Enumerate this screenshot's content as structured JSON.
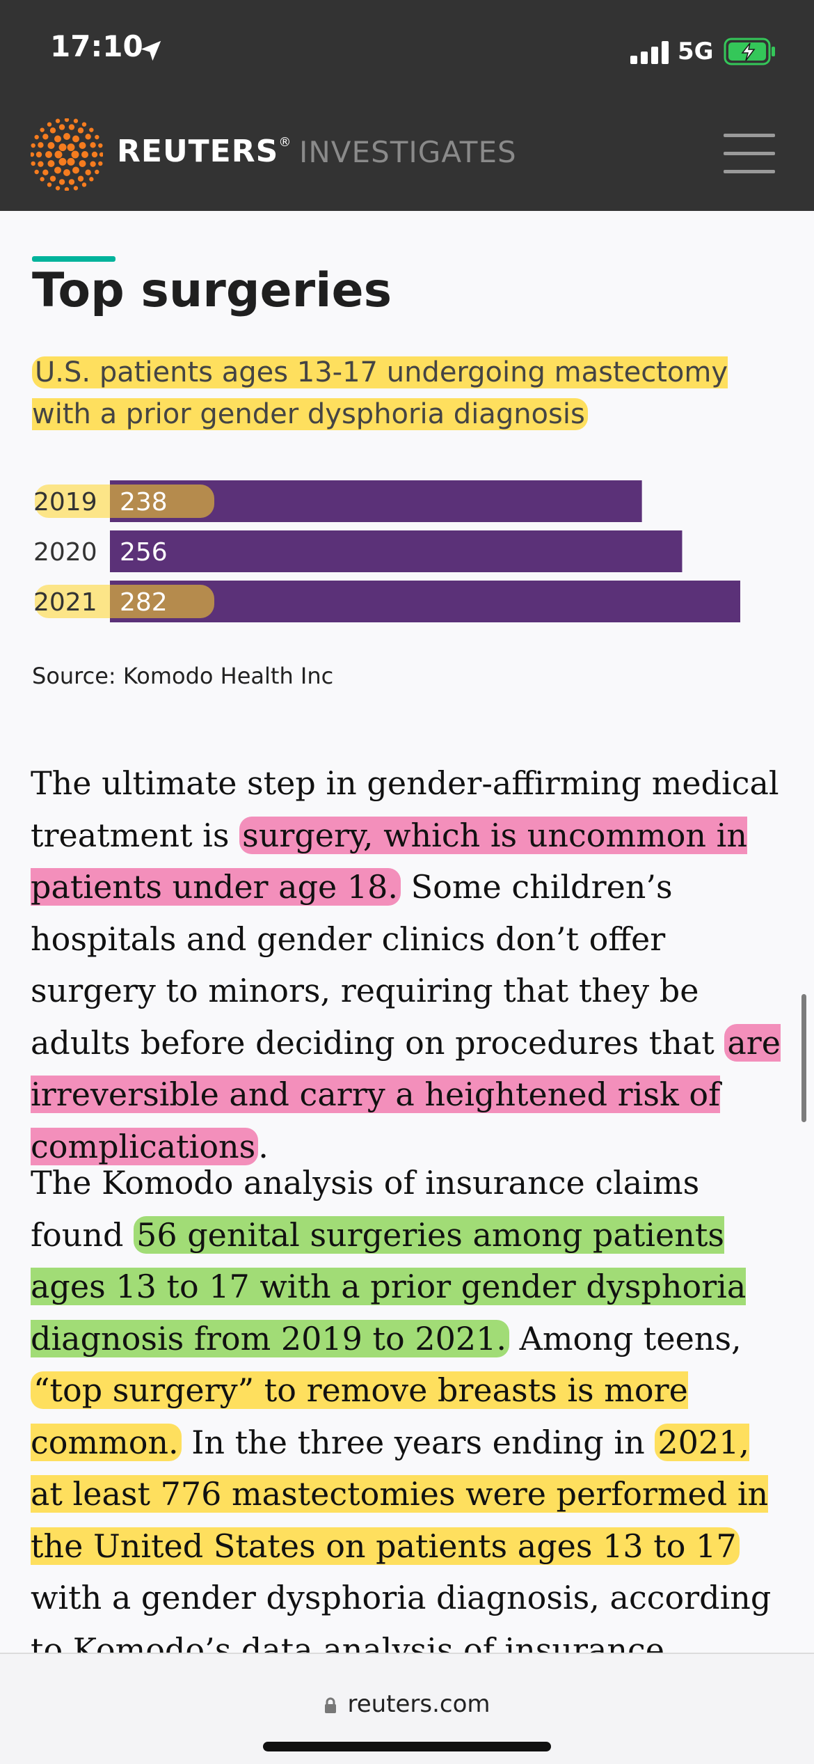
{
  "status_bar": {
    "time": "17:10",
    "network": "5G",
    "icons": [
      "location-arrow-icon",
      "signal-bars-icon",
      "battery-charging-icon"
    ]
  },
  "header": {
    "brand": "REUTERS",
    "registered_mark": "®",
    "section": "INVESTIGATES",
    "icons": [
      "reuters-logo-icon",
      "hamburger-menu-icon"
    ]
  },
  "chart_data": {
    "type": "bar",
    "orientation": "horizontal",
    "title": "Top surgeries",
    "subtitle": "U.S. patients ages 13-17 undergoing mastectomy with a prior gender dysphoria diagnosis",
    "categories": [
      "2019",
      "2020",
      "2021"
    ],
    "values": [
      238,
      256,
      282
    ],
    "data_labels": [
      "238",
      "256",
      "282"
    ],
    "xlim": [
      0,
      282
    ],
    "source": "Source: Komodo Health Inc",
    "colors": {
      "bar": "#5b3178",
      "label": "#ffffff",
      "highlight": "#ffd629"
    }
  },
  "article": {
    "p1": {
      "before": "The ultimate step in gender-affirming medical treatment is ",
      "hl1": "surgery, which is uncommon in patients under age 18.",
      "mid": " Some children’s hospitals and gender clinics don’t offer surgery to minors, requiring that they be adults before deciding on procedures that ",
      "hl2": "are irreversible and carry a heightened risk of complications",
      "after": "."
    },
    "p2": {
      "t1": "The Komodo analysis of insurance claims found ",
      "g1": "56 genital surgeries among patients ages 13 to 17 with a prior gender dysphoria diagnosis from 2019 to 2021.",
      "t2": " Among teens, ",
      "y1": "“top surgery” to remove breasts is more common.",
      "t3": " In the three years ending in ",
      "y2": "2021, at least 776 mastectomies were performed in the United States on patients ages 13 to 17",
      "t4": " with a gender dysphoria diagnosis, according to Komodo’s data analysis of insurance claims. This tally does"
    }
  },
  "bottom_bar": {
    "url": "reuters.com",
    "icons": [
      "lock-icon"
    ]
  },
  "colors": {
    "header_bg": "#333333",
    "accent": "#00b39b",
    "page_bg": "#f9f9fb"
  }
}
